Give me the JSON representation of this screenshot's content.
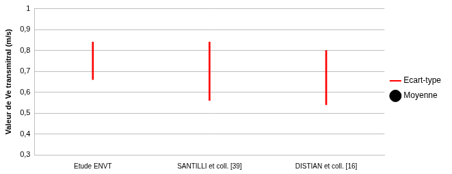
{
  "chart_data": {
    "type": "bar",
    "y_label": "Valeur de Ve transmitral (m/s)",
    "categories": [
      "Etude ENVT",
      "SANTILLI et coll. [39]",
      "DISTIAN et coll. [16]"
    ],
    "series": [
      {
        "name": "Ecart-type",
        "color": "#ff0000",
        "type": "bar",
        "marker": "line",
        "values": [
          [
            0.66,
            0.84
          ],
          [
            0.56,
            0.84
          ],
          [
            0.54,
            0.8
          ]
        ]
      },
      {
        "name": "Moyenne",
        "color": "#000000",
        "type": "scatter",
        "marker": "circle",
        "values": [
          null,
          null,
          null
        ]
      }
    ],
    "ylim": [
      0.3,
      1
    ],
    "yticks": [
      {
        "value": 0.3,
        "label": "0,3"
      },
      {
        "value": 0.4,
        "label": "0,4"
      },
      {
        "value": 0.5,
        "label": "0,5"
      },
      {
        "value": 0.6,
        "label": "0,6"
      },
      {
        "value": 0.7,
        "label": "0,7"
      },
      {
        "value": 0.8,
        "label": "0,8"
      },
      {
        "value": 0.9,
        "label": "0,9"
      },
      1
    ],
    "grid": true,
    "legend": "right"
  }
}
